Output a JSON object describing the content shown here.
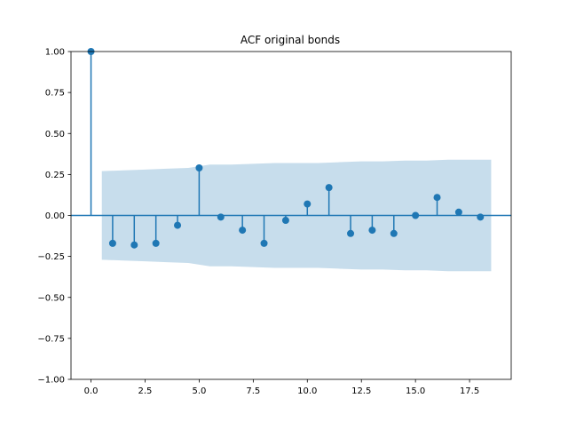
{
  "chart_data": {
    "type": "stem",
    "title": "ACF original bonds",
    "xlabel": "",
    "ylabel": "",
    "xlim": [
      -0.925,
      19.425
    ],
    "ylim": [
      -1.0,
      1.0
    ],
    "xticks": [
      0.0,
      2.5,
      5.0,
      7.5,
      10.0,
      12.5,
      15.0,
      17.5
    ],
    "xtick_labels": [
      "0.0",
      "2.5",
      "5.0",
      "7.5",
      "10.0",
      "12.5",
      "15.0",
      "17.5"
    ],
    "yticks": [
      -1.0,
      -0.75,
      -0.5,
      -0.25,
      0.0,
      0.25,
      0.5,
      0.75,
      1.0
    ],
    "ytick_labels": [
      "−1.00",
      "−0.75",
      "−0.50",
      "−0.25",
      "0.00",
      "0.25",
      "0.50",
      "0.75",
      "1.00"
    ],
    "grid": false,
    "lags": [
      0,
      1,
      2,
      3,
      4,
      5,
      6,
      7,
      8,
      9,
      10,
      11,
      12,
      13,
      14,
      15,
      16,
      17,
      18
    ],
    "values": [
      1.0,
      -0.17,
      -0.18,
      -0.17,
      -0.06,
      0.29,
      -0.01,
      -0.09,
      -0.17,
      -0.03,
      0.07,
      0.17,
      -0.11,
      -0.09,
      -0.11,
      0.0,
      0.11,
      0.02,
      -0.01
    ],
    "confidence_band": {
      "x": [
        0.5,
        1.5,
        2.5,
        3.5,
        4.5,
        5.5,
        6.5,
        7.5,
        8.5,
        9.5,
        10.5,
        11.5,
        12.5,
        13.5,
        14.5,
        15.5,
        16.5,
        17.5,
        18.5
      ],
      "upper": [
        0.27,
        0.275,
        0.28,
        0.285,
        0.29,
        0.31,
        0.31,
        0.315,
        0.32,
        0.32,
        0.32,
        0.325,
        0.33,
        0.33,
        0.335,
        0.335,
        0.34,
        0.34,
        0.34
      ],
      "lower": [
        -0.27,
        -0.275,
        -0.28,
        -0.285,
        -0.29,
        -0.31,
        -0.31,
        -0.315,
        -0.32,
        -0.32,
        -0.32,
        -0.325,
        -0.33,
        -0.33,
        -0.335,
        -0.335,
        -0.34,
        -0.34,
        -0.34
      ]
    },
    "colors": {
      "stem": "#1f77b4",
      "band": "#1f77b4",
      "axes": "#000000",
      "background": "#ffffff"
    }
  }
}
